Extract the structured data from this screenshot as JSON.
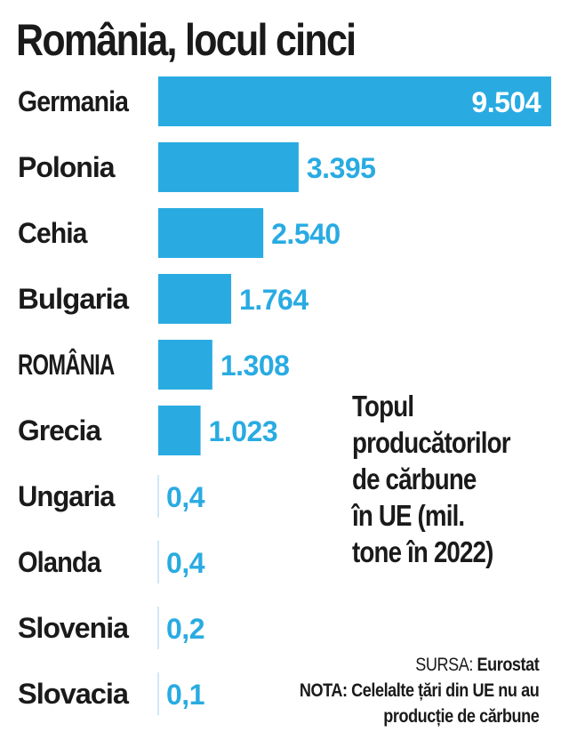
{
  "title": "România, locul cinci",
  "side_note_lines": [
    "Topul",
    "producătorilor",
    "de cărbune",
    "în UE (mil.",
    "tone în 2022)"
  ],
  "source_label": "SURSA: ",
  "source_value": "Eurostat",
  "note_lines": [
    "NOTA: Celelalte țări din UE nu au",
    "producție de cărbune"
  ],
  "colors": {
    "bar": "#29abe2",
    "value_on_bar": "#ffffff",
    "value_text": "#29abe2",
    "axis_tick": "#cfe9f7"
  },
  "chart_data": {
    "type": "bar",
    "orientation": "horizontal",
    "categories": [
      "Germania",
      "Polonia",
      "Cehia",
      "Bulgaria",
      "ROMÂNIA",
      "Grecia",
      "Ungaria",
      "Olanda",
      "Slovenia",
      "Slovacia"
    ],
    "values": [
      9504,
      3395,
      2540,
      1764,
      1308,
      1023,
      0.4,
      0.4,
      0.2,
      0.1
    ],
    "value_labels": [
      "9.504",
      "3.395",
      "2.540",
      "1.764",
      "1.308",
      "1.023",
      "0,4",
      "0,4",
      "0,2",
      "0,1"
    ],
    "xlim": [
      0,
      9504
    ],
    "grid": false,
    "legend": "none"
  }
}
